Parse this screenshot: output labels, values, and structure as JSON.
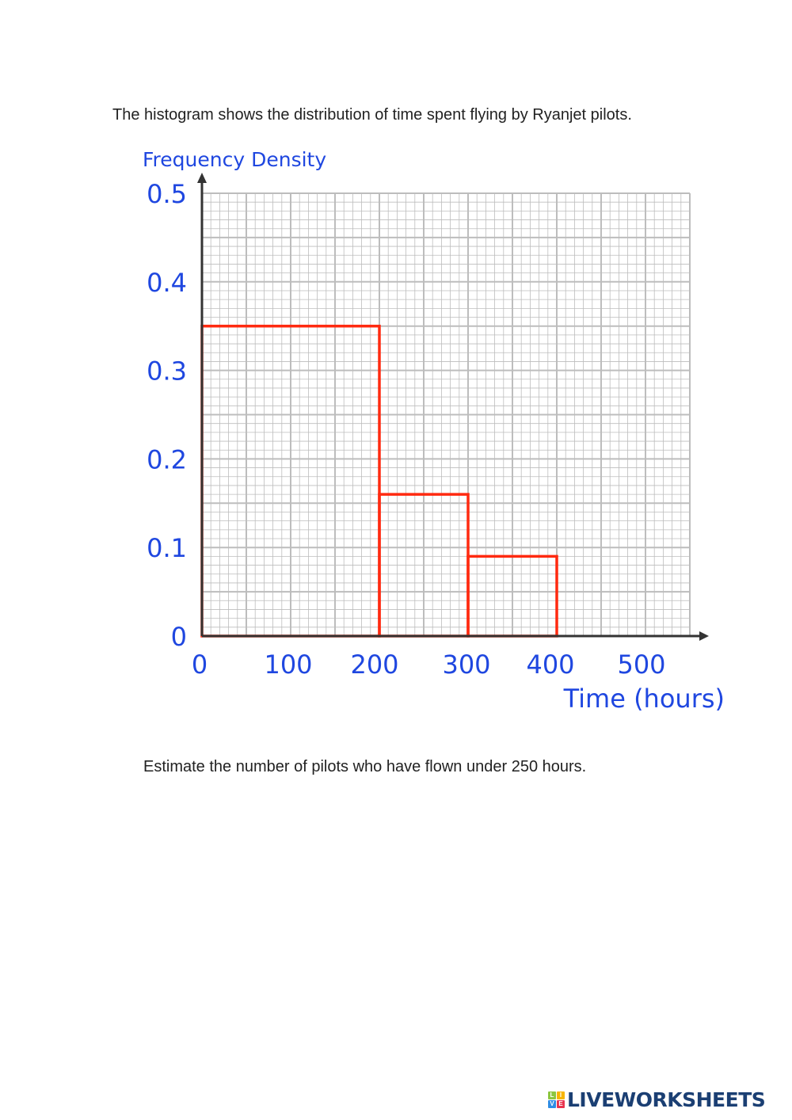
{
  "question_intro": "The histogram shows the distribution of time spent flying by Ryanjet pilots.",
  "question_prompt": "Estimate the number of pilots who have flown under 250 hours.",
  "logo": {
    "text": "LIVEWORKSHEETS",
    "tiles": [
      "L",
      "I",
      "V",
      "E"
    ]
  },
  "chart_data": {
    "type": "bar",
    "subtype": "histogram",
    "title": "",
    "xlabel": "Time (hours)",
    "ylabel": "Frequency Density",
    "xlim": [
      0,
      550
    ],
    "ylim": [
      0,
      0.5
    ],
    "x_ticks": [
      0,
      100,
      200,
      300,
      400,
      500
    ],
    "y_ticks": [
      "0",
      "0.1",
      "0.2",
      "0.3",
      "0.4",
      "0.5"
    ],
    "grid": true,
    "bins": [
      {
        "from": 0,
        "to": 200,
        "frequency_density": 0.35
      },
      {
        "from": 200,
        "to": 300,
        "frequency_density": 0.16
      },
      {
        "from": 300,
        "to": 400,
        "frequency_density": 0.09
      }
    ],
    "colors": {
      "bars": "#ff2a10",
      "labels": "#1f47e0",
      "axis": "#333333",
      "grid": "#bdbdbd"
    }
  }
}
